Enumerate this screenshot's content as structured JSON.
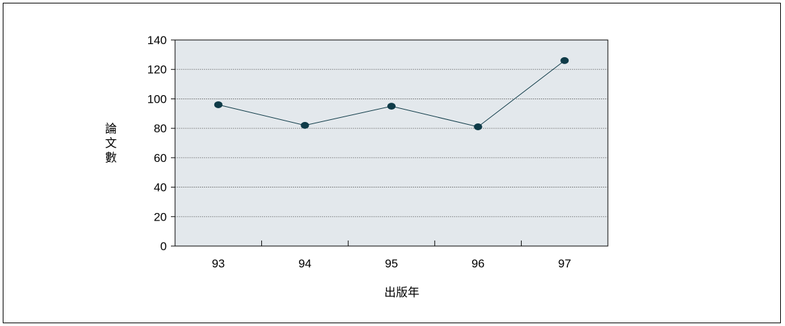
{
  "chart_data": {
    "type": "line",
    "categories": [
      "93",
      "94",
      "95",
      "96",
      "97"
    ],
    "series": [
      {
        "values": [
          96,
          82,
          95,
          81,
          126
        ]
      }
    ],
    "xlabel": "出版年",
    "ylabel": "論文數",
    "ylim": [
      0,
      140
    ],
    "yticks": [
      "0",
      "20",
      "40",
      "60",
      "80",
      "100",
      "120",
      "140"
    ],
    "grid": true,
    "colors": {
      "plot_background": "#e3e8ec",
      "line": "#0f3b48",
      "marker": "#0f3b48",
      "grid": "#555555"
    }
  }
}
